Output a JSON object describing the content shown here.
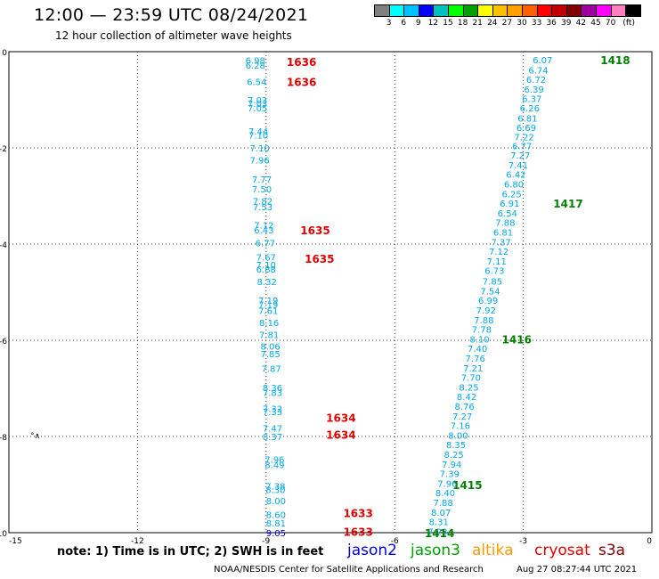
{
  "header": {
    "title": "12:00 — 23:59 UTC 08/24/2021",
    "subtitle": "12 hour collection of altimeter wave heights"
  },
  "colorbar": {
    "colors": [
      "#808080",
      "#00ffff",
      "#00c0ff",
      "#0000ff",
      "#00c0c0",
      "#00ff00",
      "#00a000",
      "#ffff00",
      "#ffc000",
      "#ffa000",
      "#ff6000",
      "#ff0000",
      "#c00000",
      "#800000",
      "#a000a0",
      "#ff00ff",
      "#ff80c0",
      "#000000"
    ],
    "labels": [
      "3",
      "6",
      "9",
      "12",
      "15",
      "18",
      "21",
      "24",
      "27",
      "30",
      "33",
      "36",
      "39",
      "42",
      "45",
      "70",
      "(ft)"
    ]
  },
  "map": {
    "x_range": [
      -15,
      0
    ],
    "y_range": [
      -10,
      0
    ],
    "x_ticks": [
      -15,
      -12,
      -9,
      -6,
      -3,
      0
    ],
    "y_ticks": [
      0,
      -2,
      -4,
      -6,
      -8,
      -10
    ],
    "x_tick_labels": [
      "-15",
      "-12",
      "-9",
      "-6",
      "-3",
      "0"
    ],
    "y_tick_labels": [
      "0",
      "-2",
      "-4",
      "-6",
      "-8",
      "-10"
    ],
    "land_marker": "°∧"
  },
  "tracks": [
    {
      "satellite": "cryosat",
      "color": "#00a8e8",
      "points": [
        {
          "lon": -9.25,
          "lat": -0.18,
          "swh": "6.98"
        },
        {
          "lon": -9.25,
          "lat": -0.28,
          "swh": "6.28"
        },
        {
          "lon": -9.22,
          "lat": -0.62,
          "swh": "6.54"
        },
        {
          "lon": -9.2,
          "lat": -1.0,
          "swh": "7.03"
        },
        {
          "lon": -9.2,
          "lat": -1.07,
          "swh": "7.03"
        },
        {
          "lon": -9.2,
          "lat": -1.17,
          "swh": "7.05"
        },
        {
          "lon": -9.18,
          "lat": -1.65,
          "swh": "7.44"
        },
        {
          "lon": -9.18,
          "lat": -1.73,
          "swh": "7.10"
        },
        {
          "lon": -9.15,
          "lat": -2.0,
          "swh": "7.10"
        },
        {
          "lon": -9.15,
          "lat": -2.25,
          "swh": "7.96"
        },
        {
          "lon": -9.1,
          "lat": -2.65,
          "swh": "7.77"
        },
        {
          "lon": -9.1,
          "lat": -2.85,
          "swh": "7.50"
        },
        {
          "lon": -9.08,
          "lat": -3.1,
          "swh": "7.82"
        },
        {
          "lon": -9.08,
          "lat": -3.22,
          "swh": "7.53"
        },
        {
          "lon": -9.05,
          "lat": -3.6,
          "swh": "7.12"
        },
        {
          "lon": -9.05,
          "lat": -3.7,
          "swh": "6.43"
        },
        {
          "lon": -9.02,
          "lat": -3.97,
          "swh": "6.77"
        },
        {
          "lon": -9.0,
          "lat": -4.27,
          "swh": "7.67"
        },
        {
          "lon": -9.0,
          "lat": -4.43,
          "swh": "7.10"
        },
        {
          "lon": -9.0,
          "lat": -4.52,
          "swh": "6.88"
        },
        {
          "lon": -8.98,
          "lat": -4.78,
          "swh": "8.32"
        },
        {
          "lon": -8.95,
          "lat": -5.17,
          "swh": "7.19"
        },
        {
          "lon": -8.95,
          "lat": -5.25,
          "swh": "7.19"
        },
        {
          "lon": -8.95,
          "lat": -5.38,
          "swh": "7.61"
        },
        {
          "lon": -8.93,
          "lat": -5.63,
          "swh": "8.16"
        },
        {
          "lon": -8.93,
          "lat": -5.88,
          "swh": "7.81"
        },
        {
          "lon": -8.9,
          "lat": -6.12,
          "swh": "8.06"
        },
        {
          "lon": -8.9,
          "lat": -6.28,
          "swh": "7.85"
        },
        {
          "lon": -8.88,
          "lat": -6.58,
          "swh": "7.87"
        },
        {
          "lon": -8.85,
          "lat": -6.98,
          "swh": "8.36"
        },
        {
          "lon": -8.85,
          "lat": -7.08,
          "swh": "7.83"
        },
        {
          "lon": -8.85,
          "lat": -7.42,
          "swh": "7.32"
        },
        {
          "lon": -8.85,
          "lat": -7.48,
          "swh": "7.33"
        },
        {
          "lon": -8.85,
          "lat": -7.82,
          "swh": "7.47"
        },
        {
          "lon": -8.85,
          "lat": -8.0,
          "swh": "8.37"
        },
        {
          "lon": -8.8,
          "lat": -8.47,
          "swh": "7.96"
        },
        {
          "lon": -8.8,
          "lat": -8.58,
          "swh": "8.49"
        },
        {
          "lon": -8.78,
          "lat": -9.03,
          "swh": "7.38"
        },
        {
          "lon": -8.78,
          "lat": -9.1,
          "swh": "8.30"
        },
        {
          "lon": -8.77,
          "lat": -9.33,
          "swh": "8.00"
        },
        {
          "lon": -8.77,
          "lat": -9.62,
          "swh": "8.60"
        },
        {
          "lon": -8.77,
          "lat": -9.8,
          "swh": "8.81"
        }
      ]
    },
    {
      "satellite": "jason2",
      "color": "#0000e0",
      "points": [
        {
          "lon": -8.77,
          "lat": -10.0,
          "swh": "9.05"
        }
      ]
    },
    {
      "satellite": "jason3",
      "color": "#00a8e8",
      "points": [
        {
          "lon": -2.55,
          "lat": -0.17,
          "swh": "6.07"
        },
        {
          "lon": -2.65,
          "lat": -0.38,
          "swh": "6.74"
        },
        {
          "lon": -2.7,
          "lat": -0.57,
          "swh": "6.72"
        },
        {
          "lon": -2.75,
          "lat": -0.78,
          "swh": "6.39"
        },
        {
          "lon": -2.8,
          "lat": -0.97,
          "swh": "6.37"
        },
        {
          "lon": -2.85,
          "lat": -1.17,
          "swh": "6.26"
        },
        {
          "lon": -2.9,
          "lat": -1.38,
          "swh": "6.81"
        },
        {
          "lon": -2.93,
          "lat": -1.57,
          "swh": "6.69"
        },
        {
          "lon": -2.98,
          "lat": -1.77,
          "swh": "7.22"
        },
        {
          "lon": -3.03,
          "lat": -1.95,
          "swh": "6.77"
        },
        {
          "lon": -3.07,
          "lat": -2.15,
          "swh": "7.27"
        },
        {
          "lon": -3.12,
          "lat": -2.35,
          "swh": "7.41"
        },
        {
          "lon": -3.17,
          "lat": -2.55,
          "swh": "6.42"
        },
        {
          "lon": -3.22,
          "lat": -2.75,
          "swh": "6.80"
        },
        {
          "lon": -3.27,
          "lat": -2.95,
          "swh": "6.25"
        },
        {
          "lon": -3.32,
          "lat": -3.15,
          "swh": "6.91"
        },
        {
          "lon": -3.37,
          "lat": -3.35,
          "swh": "6.54"
        },
        {
          "lon": -3.42,
          "lat": -3.55,
          "swh": "7.88"
        },
        {
          "lon": -3.47,
          "lat": -3.75,
          "swh": "6.81"
        },
        {
          "lon": -3.52,
          "lat": -3.95,
          "swh": "7.37"
        },
        {
          "lon": -3.57,
          "lat": -4.15,
          "swh": "7.12"
        },
        {
          "lon": -3.62,
          "lat": -4.35,
          "swh": "7.11"
        },
        {
          "lon": -3.67,
          "lat": -4.55,
          "swh": "6.73"
        },
        {
          "lon": -3.72,
          "lat": -4.77,
          "swh": "7.85"
        },
        {
          "lon": -3.77,
          "lat": -4.97,
          "swh": "7.54"
        },
        {
          "lon": -3.82,
          "lat": -5.17,
          "swh": "6.99"
        },
        {
          "lon": -3.87,
          "lat": -5.37,
          "swh": "7.92"
        },
        {
          "lon": -3.92,
          "lat": -5.57,
          "swh": "7.88"
        },
        {
          "lon": -3.97,
          "lat": -5.77,
          "swh": "7.78"
        },
        {
          "lon": -4.02,
          "lat": -5.97,
          "swh": "8.10"
        },
        {
          "lon": -4.07,
          "lat": -6.17,
          "swh": "7.40"
        },
        {
          "lon": -4.12,
          "lat": -6.37,
          "swh": "7.76"
        },
        {
          "lon": -4.17,
          "lat": -6.57,
          "swh": "7.21"
        },
        {
          "lon": -4.22,
          "lat": -6.77,
          "swh": "7.70"
        },
        {
          "lon": -4.27,
          "lat": -6.97,
          "swh": "8.25"
        },
        {
          "lon": -4.32,
          "lat": -7.17,
          "swh": "8.42"
        },
        {
          "lon": -4.37,
          "lat": -7.37,
          "swh": "8.76"
        },
        {
          "lon": -4.42,
          "lat": -7.57,
          "swh": "7.27"
        },
        {
          "lon": -4.47,
          "lat": -7.77,
          "swh": "7.16"
        },
        {
          "lon": -4.52,
          "lat": -7.97,
          "swh": "8.00"
        },
        {
          "lon": -4.57,
          "lat": -8.17,
          "swh": "8.35"
        },
        {
          "lon": -4.62,
          "lat": -8.37,
          "swh": "8.25"
        },
        {
          "lon": -4.67,
          "lat": -8.57,
          "swh": "7.94"
        },
        {
          "lon": -4.72,
          "lat": -8.77,
          "swh": "7.39"
        },
        {
          "lon": -4.77,
          "lat": -8.97,
          "swh": "7.96"
        },
        {
          "lon": -4.82,
          "lat": -9.17,
          "swh": "8.40"
        },
        {
          "lon": -4.87,
          "lat": -9.37,
          "swh": "7.88"
        },
        {
          "lon": -4.92,
          "lat": -9.57,
          "swh": "8.07"
        },
        {
          "lon": -4.97,
          "lat": -9.77,
          "swh": "8.31"
        },
        {
          "lon": -5.0,
          "lat": -9.97,
          "swh": "7.23"
        }
      ]
    }
  ],
  "time_labels": [
    {
      "time": "1636",
      "lon": -8.52,
      "lat": -0.2,
      "color": "#e00000"
    },
    {
      "time": "1636",
      "lon": -8.52,
      "lat": -0.62,
      "color": "#e00000"
    },
    {
      "time": "1635",
      "lon": -8.2,
      "lat": -3.7,
      "color": "#e00000"
    },
    {
      "time": "1635",
      "lon": -8.1,
      "lat": -4.3,
      "color": "#e00000"
    },
    {
      "time": "1634",
      "lon": -7.6,
      "lat": -7.6,
      "color": "#e00000"
    },
    {
      "time": "1634",
      "lon": -7.6,
      "lat": -7.95,
      "color": "#e00000"
    },
    {
      "time": "1633",
      "lon": -7.2,
      "lat": -9.58,
      "color": "#e00000"
    },
    {
      "time": "1633",
      "lon": -7.2,
      "lat": -9.97,
      "color": "#e00000"
    },
    {
      "time": "1418",
      "lon": -1.2,
      "lat": -0.17,
      "color": "#008000"
    },
    {
      "time": "1417",
      "lon": -2.3,
      "lat": -3.15,
      "color": "#008000"
    },
    {
      "time": "1416",
      "lon": -3.5,
      "lat": -5.97,
      "color": "#008000"
    },
    {
      "time": "1415",
      "lon": -4.65,
      "lat": -9.0,
      "color": "#008000"
    },
    {
      "time": "1414",
      "lon": -5.3,
      "lat": -10.0,
      "color": "#008000"
    }
  ],
  "note": "note:  1) Time is in UTC;  2) SWH is in feet",
  "legend": [
    {
      "label": "jason2",
      "color": "#0000e0"
    },
    {
      "label": "jason3",
      "color": "#00a000"
    },
    {
      "label": "altika",
      "color": "#ff9900"
    },
    {
      "label": "cryosat",
      "color": "#e00000"
    },
    {
      "label": "s3a",
      "color": "#800000"
    }
  ],
  "footer": {
    "credit": "NOAA/NESDIS Center for Satellite Applications and Research",
    "timestamp": "Aug 27 08:27:44 UTC 2021"
  }
}
